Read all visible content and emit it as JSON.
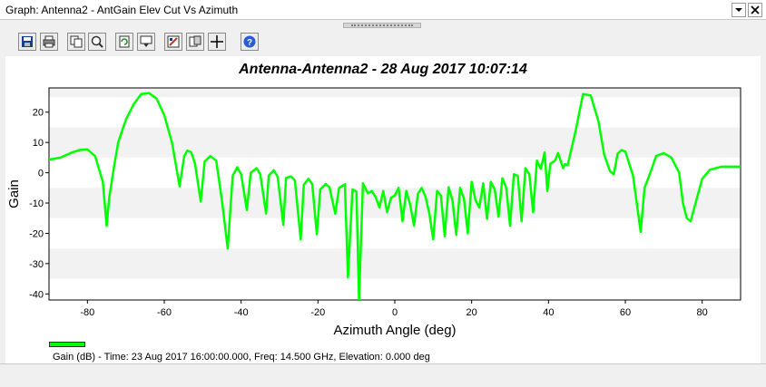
{
  "window": {
    "title": "Graph:  Antenna2 - AntGain Elev Cut Vs Azimuth",
    "colors": {
      "panel": "#ffffff",
      "chrome": "#f0f0f0"
    }
  },
  "toolbar": {
    "tools": [
      {
        "name": "save-icon"
      },
      {
        "name": "print-icon"
      },
      {
        "name": "copy-icon"
      },
      {
        "name": "zoom-icon"
      },
      {
        "name": "refresh-icon"
      },
      {
        "name": "export-icon"
      },
      {
        "name": "properties-icon"
      },
      {
        "name": "layout-icon"
      },
      {
        "name": "crosshair-icon"
      },
      {
        "name": "help-icon"
      }
    ]
  },
  "chart": {
    "title": "Antenna-Antenna2 - 28 Aug 2017 10:07:14",
    "legend_label": "Gain (dB) - Time: 23 Aug 2017 16:00:00.000, Freq: 14.500 GHz, Elevation: 0.000 deg"
  },
  "chart_data": {
    "type": "line",
    "title": "Antenna-Antenna2 - 28 Aug 2017 10:07:14",
    "xlabel": "Azimuth Angle (deg)",
    "ylabel": "Gain",
    "xlim": [
      -90,
      90
    ],
    "ylim": [
      -42,
      28
    ],
    "xticks": [
      -80,
      -60,
      -40,
      -20,
      0,
      20,
      40,
      60,
      80
    ],
    "yticks": [
      20,
      10,
      0,
      -10,
      -20,
      -30,
      -40
    ],
    "grid": "horizontal alternating bands",
    "legend": "bottom-left",
    "series": [
      {
        "name": "Gain (dB) - Time: 23 Aug 2017 16:00:00.000, Freq: 14.500 GHz, Elevation: 0.000 deg",
        "color": "#00ff00",
        "x": [
          -90,
          -87,
          -84,
          -82,
          -80,
          -78,
          -76,
          -75,
          -74.3,
          -73.2,
          -72,
          -70,
          -68,
          -66,
          -64,
          -62,
          -60,
          -58,
          -56,
          -54.8,
          -54,
          -53,
          -52,
          -50.5,
          -49.5,
          -48,
          -46.5,
          -45,
          -43.5,
          -42.2,
          -41,
          -40,
          -38.5,
          -37.5,
          -36,
          -35,
          -33.5,
          -32.8,
          -31.5,
          -30.5,
          -29,
          -28.3,
          -27,
          -26,
          -24.5,
          -23.7,
          -22.5,
          -21.5,
          -20.3,
          -19.4,
          -18,
          -17,
          -15.5,
          -14.5,
          -13,
          -12.2,
          -11,
          -10,
          -9.3,
          -8.3,
          -7,
          -6,
          -5,
          -4,
          -3,
          -2,
          -1,
          0,
          1,
          2,
          3,
          4,
          5,
          6,
          7,
          8,
          9,
          10,
          11,
          12,
          13,
          14,
          15,
          16,
          17,
          18,
          19,
          20,
          21,
          22,
          23,
          24,
          25,
          26,
          27,
          28,
          29,
          30,
          31,
          32,
          33,
          34,
          35,
          36,
          37,
          38,
          39,
          39.7,
          40.5,
          41.7,
          42.5,
          43.8,
          44.3,
          45,
          47,
          49,
          51,
          53,
          54.5,
          56,
          57,
          58,
          59,
          60,
          62,
          64,
          65,
          66.5,
          68,
          70,
          72,
          74,
          75,
          76,
          77,
          78.5,
          80,
          82,
          85,
          88,
          90
        ],
        "y": [
          4.3,
          5,
          6.7,
          7.5,
          7.7,
          5.5,
          -3,
          -17.5,
          -8,
          1,
          10,
          17.5,
          22.5,
          26,
          26.3,
          24.5,
          19,
          10,
          -4.5,
          5.5,
          7.3,
          6.8,
          3,
          -9.5,
          3.7,
          5.5,
          4,
          -9,
          -25,
          -1,
          1.8,
          -0.5,
          -12.3,
          0,
          1.5,
          -0.5,
          -13.5,
          -1,
          0.8,
          -1.3,
          -17.2,
          -1.7,
          -1.2,
          -2.5,
          -22,
          -4,
          -2,
          -3.7,
          -20.3,
          -5.5,
          -3.7,
          -4.8,
          -13.5,
          -5,
          -3.8,
          -34.5,
          -5.5,
          -6.2,
          -42,
          -3.5,
          -6.8,
          -6,
          -8,
          -11.5,
          -6,
          -13,
          -8.3,
          -7.5,
          -5,
          -16,
          -6,
          -10.5,
          -17.5,
          -7,
          -5,
          -8,
          -13.5,
          -22,
          -6,
          -7.5,
          -21,
          -4.8,
          -9,
          -20.5,
          -5,
          -8.5,
          -20,
          -3,
          -9,
          -11.5,
          -3.5,
          -15.2,
          -3,
          -5.5,
          -14.5,
          -1.8,
          -5,
          -17.5,
          -0.5,
          -1,
          -16,
          1.5,
          -0.5,
          -13,
          4,
          1.3,
          6.7,
          -6,
          3,
          4,
          6.5,
          1.5,
          2.8,
          2.5,
          13.5,
          26,
          25.5,
          17,
          6,
          0.5,
          -0.5,
          6.3,
          7.5,
          7,
          -1,
          -19.5,
          -5,
          0,
          5.5,
          6.5,
          5,
          0,
          -10,
          -15,
          -16,
          -9,
          -2,
          1,
          2,
          2,
          2
        ]
      }
    ]
  }
}
